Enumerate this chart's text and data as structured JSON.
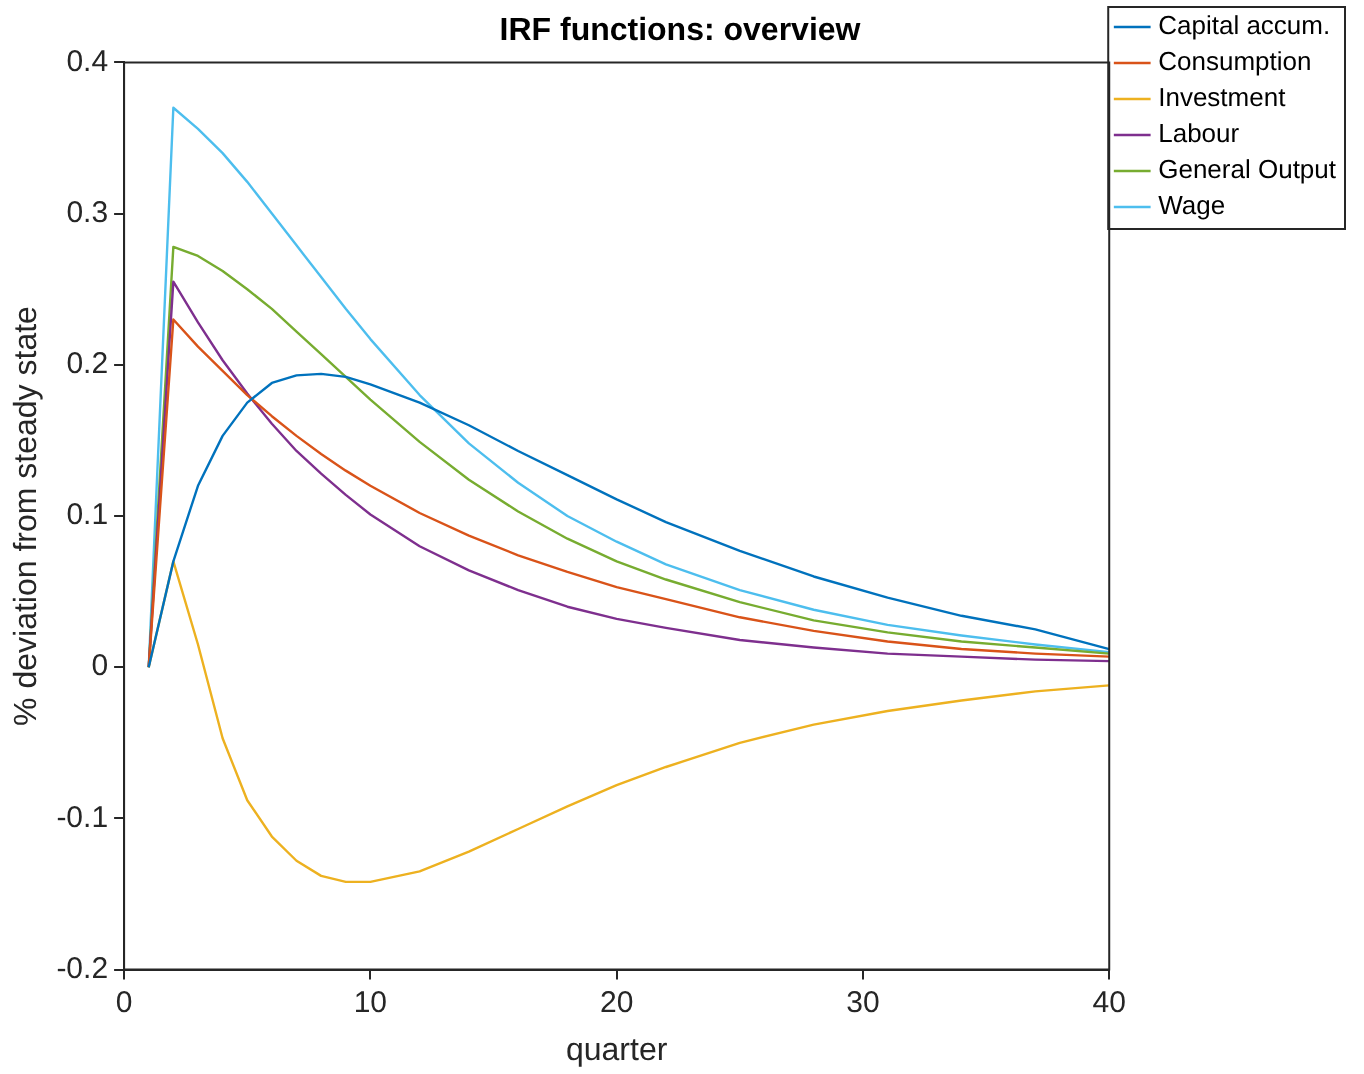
{
  "chart_data": {
    "type": "line",
    "title": "IRF functions: overview",
    "xlabel": "quarter",
    "ylabel": "% deviation from steady state",
    "x": [
      1,
      2,
      3,
      4,
      5,
      6,
      7,
      8,
      9,
      10,
      12,
      14,
      16,
      18,
      20,
      22,
      25,
      28,
      31,
      34,
      37,
      40
    ],
    "series": [
      {
        "name": "Capital accum.",
        "color": "#0072bd",
        "values": [
          0,
          0.07,
          0.12,
          0.153,
          0.175,
          0.188,
          0.193,
          0.194,
          0.192,
          0.187,
          0.175,
          0.16,
          0.143,
          0.127,
          0.111,
          0.096,
          0.077,
          0.06,
          0.046,
          0.034,
          0.025,
          0.012
        ]
      },
      {
        "name": "Consumption",
        "color": "#d95319",
        "values": [
          0,
          0.23,
          0.212,
          0.196,
          0.18,
          0.166,
          0.153,
          0.141,
          0.13,
          0.12,
          0.102,
          0.087,
          0.074,
          0.063,
          0.053,
          0.045,
          0.033,
          0.024,
          0.017,
          0.012,
          0.009,
          0.007
        ]
      },
      {
        "name": "Investment",
        "color": "#edb120",
        "values": [
          0,
          0.07,
          0.015,
          -0.047,
          -0.088,
          -0.112,
          -0.128,
          -0.138,
          -0.142,
          -0.142,
          -0.135,
          -0.122,
          -0.107,
          -0.092,
          -0.078,
          -0.066,
          -0.05,
          -0.038,
          -0.029,
          -0.022,
          -0.016,
          -0.012
        ]
      },
      {
        "name": "Labour",
        "color": "#7e2f8e",
        "values": [
          0,
          0.255,
          0.228,
          0.203,
          0.181,
          0.161,
          0.143,
          0.128,
          0.114,
          0.101,
          0.08,
          0.064,
          0.051,
          0.04,
          0.032,
          0.026,
          0.018,
          0.013,
          0.009,
          0.007,
          0.005,
          0.004
        ]
      },
      {
        "name": "General Output",
        "color": "#77ac30",
        "values": [
          0,
          0.278,
          0.272,
          0.262,
          0.25,
          0.237,
          0.222,
          0.207,
          0.192,
          0.177,
          0.149,
          0.124,
          0.103,
          0.085,
          0.07,
          0.058,
          0.043,
          0.031,
          0.023,
          0.017,
          0.013,
          0.009
        ]
      },
      {
        "name": "Wage",
        "color": "#4dbeee",
        "values": [
          0,
          0.37,
          0.356,
          0.34,
          0.321,
          0.3,
          0.279,
          0.258,
          0.237,
          0.217,
          0.18,
          0.148,
          0.122,
          0.1,
          0.083,
          0.068,
          0.051,
          0.038,
          0.028,
          0.021,
          0.015,
          0.01
        ]
      }
    ],
    "xlim": [
      0,
      40
    ],
    "xticks": [
      0,
      10,
      20,
      30,
      40
    ],
    "ylim": [
      -0.2,
      0.4
    ],
    "yticks": [
      -0.2,
      -0.1,
      0,
      0.1,
      0.2,
      0.3,
      0.4
    ],
    "grid": false,
    "legend": "top right",
    "marker": "none",
    "line_style": "solid"
  }
}
